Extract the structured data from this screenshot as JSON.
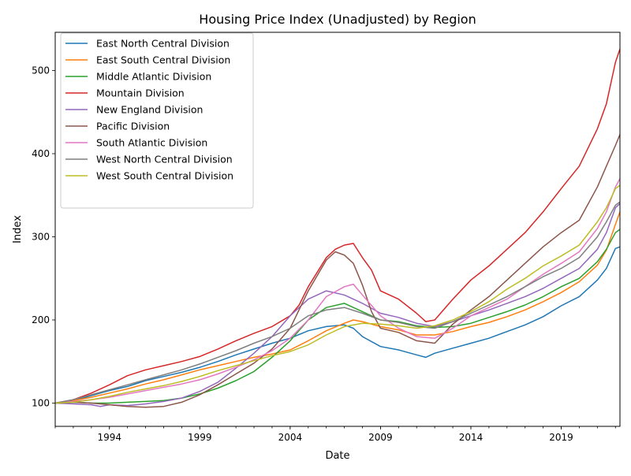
{
  "chart_data": {
    "type": "line",
    "title": "Housing Price Index (Unadjusted) by Region",
    "xlabel": "Date",
    "ylabel": "Index",
    "xlim": [
      1991.0,
      2022.25
    ],
    "ylim": [
      72,
      546
    ],
    "x_ticks": [
      {
        "value": 1994,
        "label": "1994"
      },
      {
        "value": 1999,
        "label": "1999"
      },
      {
        "value": 2004,
        "label": "2004"
      },
      {
        "value": 2009,
        "label": "2009"
      },
      {
        "value": 2014,
        "label": "2014"
      },
      {
        "value": 2019,
        "label": "2019"
      }
    ],
    "y_ticks": [
      100,
      200,
      300,
      400,
      500
    ],
    "grid": false,
    "legend_position": "upper-left",
    "series": [
      {
        "name": "East North Central Division",
        "color": "#1f77b4",
        "x": [
          1991.0,
          1992.0,
          1993.0,
          1994.0,
          1995.0,
          1996.0,
          1997.0,
          1998.0,
          1999.0,
          2000.0,
          2001.0,
          2002.0,
          2003.0,
          2004.0,
          2005.0,
          2006.0,
          2007.0,
          2007.5,
          2008.0,
          2009.0,
          2010.0,
          2011.0,
          2011.5,
          2012.0,
          2013.0,
          2014.0,
          2015.0,
          2016.0,
          2017.0,
          2018.0,
          2019.0,
          2020.0,
          2021.0,
          2021.5,
          2022.0,
          2022.25
        ],
        "y": [
          100,
          103,
          109,
          115,
          120,
          127,
          132,
          137,
          143,
          150,
          158,
          165,
          172,
          178,
          187,
          192,
          194,
          190,
          180,
          168,
          164,
          158,
          155,
          160,
          166,
          172,
          178,
          186,
          194,
          204,
          217,
          228,
          248,
          262,
          286,
          288
        ]
      },
      {
        "name": "East South Central Division",
        "color": "#ff7f0e",
        "x": [
          1991.0,
          1992.0,
          1993.0,
          1994.0,
          1995.0,
          1996.0,
          1997.0,
          1998.0,
          1999.0,
          2000.0,
          2001.0,
          2002.0,
          2003.0,
          2004.0,
          2005.0,
          2006.0,
          2007.0,
          2007.5,
          2008.0,
          2009.0,
          2010.0,
          2011.0,
          2012.0,
          2013.0,
          2014.0,
          2015.0,
          2016.0,
          2017.0,
          2018.0,
          2019.0,
          2020.0,
          2021.0,
          2021.5,
          2022.0,
          2022.25
        ],
        "y": [
          100,
          103,
          107,
          112,
          117,
          123,
          128,
          134,
          140,
          145,
          150,
          155,
          159,
          164,
          175,
          187,
          196,
          200,
          198,
          192,
          188,
          182,
          182,
          186,
          192,
          197,
          204,
          212,
          222,
          233,
          246,
          266,
          284,
          315,
          330
        ]
      },
      {
        "name": "Middle Atlantic Division",
        "color": "#2ca02c",
        "x": [
          1991.0,
          1992.0,
          1993.0,
          1994.0,
          1995.0,
          1996.0,
          1997.0,
          1998.0,
          1999.0,
          2000.0,
          2001.0,
          2002.0,
          2003.0,
          2004.0,
          2005.0,
          2006.0,
          2007.0,
          2008.0,
          2009.0,
          2010.0,
          2011.0,
          2012.0,
          2013.0,
          2014.0,
          2015.0,
          2016.0,
          2017.0,
          2018.0,
          2019.0,
          2020.0,
          2021.0,
          2021.5,
          2022.0,
          2022.25
        ],
        "y": [
          100,
          101,
          100,
          100,
          101,
          102,
          103,
          106,
          111,
          118,
          127,
          138,
          155,
          175,
          200,
          215,
          220,
          210,
          200,
          198,
          193,
          191,
          192,
          196,
          203,
          210,
          218,
          228,
          240,
          250,
          270,
          285,
          305,
          309
        ]
      },
      {
        "name": "Mountain Division",
        "color": "#d62728",
        "x": [
          1991.0,
          1992.0,
          1993.0,
          1994.0,
          1995.0,
          1996.0,
          1997.0,
          1998.0,
          1999.0,
          2000.0,
          2001.0,
          2002.0,
          2003.0,
          2004.0,
          2004.5,
          2005.0,
          2006.0,
          2006.5,
          2007.0,
          2007.5,
          2008.0,
          2008.5,
          2009.0,
          2010.0,
          2011.0,
          2011.5,
          2012.0,
          2013.0,
          2014.0,
          2015.0,
          2016.0,
          2017.0,
          2018.0,
          2019.0,
          2020.0,
          2021.0,
          2021.5,
          2022.0,
          2022.25
        ],
        "y": [
          100,
          104,
          112,
          122,
          133,
          140,
          145,
          150,
          156,
          165,
          175,
          184,
          192,
          205,
          218,
          240,
          275,
          285,
          290,
          292,
          275,
          260,
          235,
          225,
          208,
          198,
          200,
          225,
          248,
          265,
          285,
          305,
          330,
          358,
          385,
          430,
          460,
          510,
          526
        ]
      },
      {
        "name": "New England Division",
        "color": "#9467bd",
        "x": [
          1991.0,
          1992.0,
          1993.0,
          1993.5,
          1994.0,
          1995.0,
          1996.0,
          1997.0,
          1998.0,
          1999.0,
          2000.0,
          2001.0,
          2002.0,
          2003.0,
          2004.0,
          2005.0,
          2006.0,
          2007.0,
          2008.0,
          2009.0,
          2010.0,
          2011.0,
          2012.0,
          2013.0,
          2014.0,
          2015.0,
          2016.0,
          2017.0,
          2018.0,
          2019.0,
          2020.0,
          2021.0,
          2021.5,
          2022.0,
          2022.25
        ],
        "y": [
          100,
          99,
          98,
          96,
          98,
          97,
          99,
          102,
          106,
          114,
          125,
          142,
          160,
          180,
          205,
          225,
          235,
          230,
          220,
          208,
          203,
          196,
          192,
          198,
          205,
          212,
          220,
          228,
          238,
          250,
          262,
          285,
          305,
          335,
          340
        ]
      },
      {
        "name": "Pacific Division",
        "color": "#8c564b",
        "x": [
          1991.0,
          1992.0,
          1993.0,
          1994.0,
          1995.0,
          1996.0,
          1997.0,
          1998.0,
          1999.0,
          2000.0,
          2001.0,
          2002.0,
          2003.0,
          2004.0,
          2005.0,
          2006.0,
          2006.5,
          2007.0,
          2007.5,
          2008.0,
          2008.5,
          2009.0,
          2010.0,
          2011.0,
          2012.0,
          2013.0,
          2014.0,
          2015.0,
          2016.0,
          2017.0,
          2018.0,
          2019.0,
          2020.0,
          2021.0,
          2021.5,
          2022.0,
          2022.25
        ],
        "y": [
          100,
          101,
          100,
          98,
          96,
          95,
          96,
          101,
          110,
          122,
          135,
          148,
          165,
          190,
          235,
          272,
          282,
          278,
          268,
          242,
          210,
          190,
          185,
          175,
          172,
          195,
          212,
          228,
          248,
          268,
          288,
          305,
          320,
          360,
          385,
          410,
          423
        ]
      },
      {
        "name": "South Atlantic Division",
        "color": "#e377c2",
        "x": [
          1991.0,
          1992.0,
          1993.0,
          1994.0,
          1995.0,
          1996.0,
          1997.0,
          1998.0,
          1999.0,
          2000.0,
          2001.0,
          2002.0,
          2003.0,
          2004.0,
          2005.0,
          2006.0,
          2007.0,
          2007.5,
          2008.0,
          2009.0,
          2010.0,
          2011.0,
          2012.0,
          2013.0,
          2014.0,
          2015.0,
          2016.0,
          2017.0,
          2018.0,
          2019.0,
          2020.0,
          2021.0,
          2021.5,
          2022.0,
          2022.25
        ],
        "y": [
          100,
          102,
          104,
          107,
          111,
          115,
          119,
          123,
          128,
          135,
          143,
          152,
          163,
          178,
          200,
          228,
          240,
          243,
          230,
          205,
          190,
          180,
          178,
          190,
          205,
          215,
          225,
          240,
          255,
          268,
          282,
          310,
          330,
          360,
          370
        ]
      },
      {
        "name": "West North Central Division",
        "color": "#7f7f7f",
        "x": [
          1991.0,
          1992.0,
          1993.0,
          1994.0,
          1995.0,
          1996.0,
          1997.0,
          1998.0,
          1999.0,
          2000.0,
          2001.0,
          2002.0,
          2003.0,
          2004.0,
          2005.0,
          2006.0,
          2007.0,
          2008.0,
          2009.0,
          2010.0,
          2011.0,
          2012.0,
          2013.0,
          2014.0,
          2015.0,
          2016.0,
          2017.0,
          2018.0,
          2019.0,
          2020.0,
          2021.0,
          2021.5,
          2022.0,
          2022.25
        ],
        "y": [
          100,
          104,
          110,
          116,
          122,
          128,
          134,
          140,
          147,
          155,
          163,
          172,
          180,
          190,
          205,
          212,
          215,
          208,
          200,
          197,
          192,
          190,
          198,
          208,
          218,
          228,
          240,
          252,
          262,
          275,
          300,
          318,
          338,
          342
        ]
      },
      {
        "name": "West South Central Division",
        "color": "#bcbd22",
        "x": [
          1991.0,
          1992.0,
          1993.0,
          1994.0,
          1995.0,
          1996.0,
          1997.0,
          1998.0,
          1999.0,
          2000.0,
          2001.0,
          2002.0,
          2003.0,
          2004.0,
          2005.0,
          2006.0,
          2007.0,
          2008.0,
          2009.0,
          2010.0,
          2011.0,
          2012.0,
          2013.0,
          2014.0,
          2015.0,
          2016.0,
          2017.0,
          2018.0,
          2019.0,
          2020.0,
          2021.0,
          2021.5,
          2022.0,
          2022.25
        ],
        "y": [
          100,
          101,
          104,
          108,
          113,
          117,
          121,
          126,
          132,
          139,
          145,
          151,
          157,
          162,
          170,
          182,
          192,
          196,
          195,
          193,
          190,
          193,
          200,
          210,
          222,
          237,
          250,
          265,
          277,
          290,
          318,
          335,
          358,
          362
        ]
      }
    ]
  }
}
